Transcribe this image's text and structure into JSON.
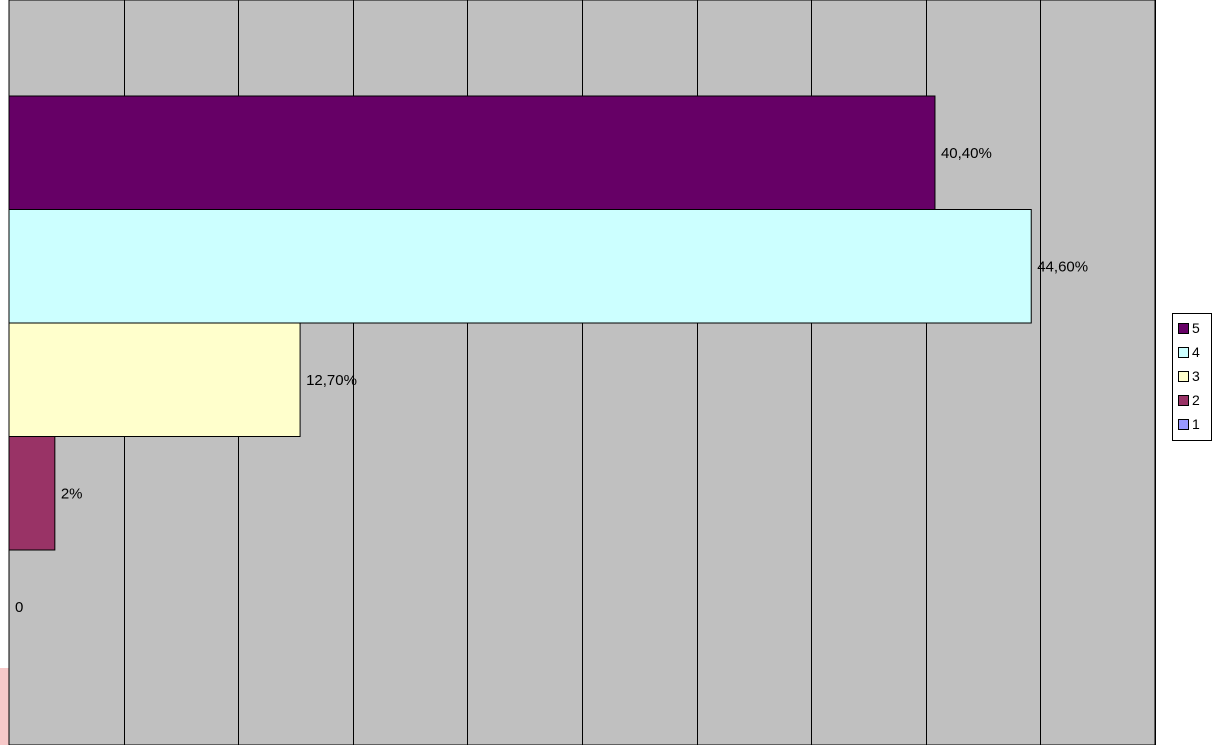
{
  "chart_data": {
    "type": "bar",
    "orientation": "horizontal",
    "categories": [
      "5",
      "4",
      "3",
      "2",
      "1"
    ],
    "values": [
      40.4,
      44.6,
      12.7,
      2,
      0
    ],
    "data_labels": [
      "40,40%",
      "44,60%",
      "12,70%",
      "2%",
      "0"
    ],
    "xlim": [
      0,
      50
    ],
    "x_gridlines": 10,
    "grid": true,
    "legend_position": "right",
    "colors": [
      "#660066",
      "#ccffff",
      "#ffffcc",
      "#993366",
      "#9999ff"
    ],
    "plot_background": "#c0c0c0"
  },
  "legend": [
    {
      "label": "5",
      "color": "#660066"
    },
    {
      "label": "4",
      "color": "#ccffff"
    },
    {
      "label": "3",
      "color": "#ffffcc"
    },
    {
      "label": "2",
      "color": "#993366"
    },
    {
      "label": "1",
      "color": "#9999ff"
    }
  ]
}
